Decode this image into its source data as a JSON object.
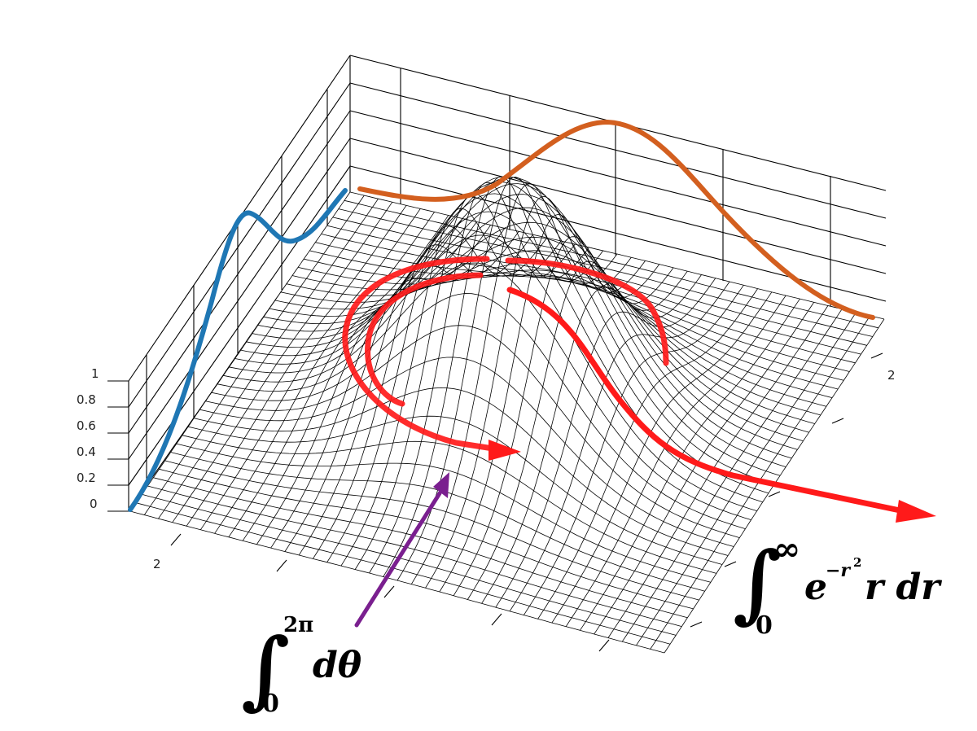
{
  "z_axis": {
    "ticks": [
      "0",
      "0.2",
      "0.4",
      "0.6",
      "0.8",
      "1"
    ]
  },
  "x_axis": {
    "tick": "2"
  },
  "y_axis": {
    "tick": "2"
  },
  "formulas": {
    "theta_integral": {
      "lower": "0",
      "upper": "2π",
      "body": "dθ"
    },
    "radial_integral": {
      "lower": "0",
      "upper": "∞",
      "base": "e",
      "exp": "−r",
      "exp_power": "2",
      "tail": "r dr"
    }
  },
  "colors": {
    "side_curve_left": "#1f77b4",
    "side_curve_back": "#d35f1f",
    "arrows_red": "#ff1a1a",
    "arrow_purple": "#7a1f8f"
  }
}
